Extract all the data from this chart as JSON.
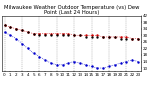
{
  "title": "Milwaukee Weather Outdoor Temperature (vs) Dew Point (Last 24 Hours)",
  "background_color": "#ffffff",
  "grid_color": "#888888",
  "temp_color": "#cc0000",
  "dew_color": "#0000cc",
  "black_color": "#000000",
  "hours": [
    0,
    1,
    2,
    3,
    4,
    5,
    6,
    7,
    8,
    9,
    10,
    11,
    12,
    13,
    14,
    15,
    16,
    17,
    18,
    19,
    20,
    21,
    22,
    23
  ],
  "temp_values": [
    36,
    35,
    34,
    33,
    32,
    31,
    31,
    31,
    31,
    31,
    31,
    31,
    30,
    30,
    30,
    30,
    30,
    29,
    29,
    29,
    29,
    29,
    28,
    28
  ],
  "dew_values": [
    32,
    30,
    28,
    25,
    22,
    19,
    17,
    15,
    13,
    12,
    12,
    13,
    14,
    13,
    12,
    11,
    10,
    10,
    11,
    12,
    13,
    14,
    15,
    14
  ],
  "black_values": [
    36,
    35,
    34,
    33,
    32,
    31,
    30,
    30,
    30,
    30,
    30,
    30,
    30,
    30,
    29,
    29,
    29,
    29,
    29,
    29,
    28,
    28,
    28,
    28
  ],
  "ylim_min": 8,
  "ylim_max": 42,
  "ytick_values": [
    10,
    14,
    18,
    22,
    26,
    30,
    34,
    38,
    42
  ],
  "ytick_labels": [
    "10",
    "14",
    "18",
    "22",
    "26",
    "30",
    "34",
    "38",
    "42"
  ],
  "vgrid_hours": [
    0,
    3,
    6,
    9,
    12,
    15,
    18,
    21
  ],
  "title_fontsize": 3.8,
  "tick_fontsize": 3.0,
  "marker_size": 1.5
}
